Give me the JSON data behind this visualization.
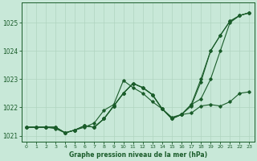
{
  "background_color": "#c8e8d8",
  "grid_color": "#b0d4c0",
  "line_color": "#1a5c2a",
  "xlabel": "Graphe pression niveau de la mer (hPa)",
  "xlim": [
    0,
    23
  ],
  "ylim": [
    1020.8,
    1025.7
  ],
  "yticks": [
    1021,
    1022,
    1023,
    1024,
    1025
  ],
  "xticks": [
    0,
    1,
    2,
    3,
    4,
    5,
    6,
    7,
    8,
    9,
    10,
    11,
    12,
    13,
    14,
    15,
    16,
    17,
    18,
    19,
    20,
    21,
    22,
    23
  ],
  "lines": [
    {
      "x": [
        0,
        1,
        2,
        3,
        4,
        5,
        6,
        7,
        8,
        9,
        10,
        11,
        12,
        13,
        14,
        15,
        16,
        17,
        18,
        19,
        20,
        21,
        22,
        23
      ],
      "y": [
        1021.3,
        1021.3,
        1021.3,
        1021.3,
        1021.1,
        1021.2,
        1021.35,
        1021.3,
        1021.6,
        1022.05,
        1022.5,
        1022.85,
        1022.7,
        1022.45,
        1021.95,
        1021.6,
        1021.75,
        1022.1,
        1023.0,
        1024.0,
        1024.55,
        1025.05,
        1025.25,
        1025.35
      ]
    },
    {
      "x": [
        0,
        1,
        2,
        3,
        4,
        5,
        6,
        7,
        8,
        9,
        10,
        11,
        12,
        13,
        14,
        15,
        16,
        17,
        18,
        19,
        20,
        21,
        22,
        23
      ],
      "y": [
        1021.3,
        1021.3,
        1021.3,
        1021.3,
        1021.1,
        1021.2,
        1021.35,
        1021.3,
        1021.6,
        1022.05,
        1022.5,
        1022.85,
        1022.7,
        1022.45,
        1021.95,
        1021.6,
        1021.75,
        1022.1,
        1022.3,
        1023.0,
        1024.0,
        1025.0,
        1025.25,
        1025.35
      ]
    },
    {
      "x": [
        0,
        1,
        2,
        3,
        4,
        5,
        6,
        7,
        8,
        9,
        10,
        11,
        12,
        13,
        14,
        15,
        16,
        17,
        18,
        19,
        20,
        21,
        22,
        23
      ],
      "y": [
        1021.3,
        1021.3,
        1021.3,
        1021.3,
        1021.1,
        1021.2,
        1021.35,
        1021.3,
        1021.6,
        1022.05,
        1022.5,
        1022.85,
        1022.7,
        1022.45,
        1021.95,
        1021.6,
        1021.75,
        1022.05,
        1022.9,
        1024.0,
        1024.55,
        1025.05,
        1025.25,
        1025.35
      ]
    },
    {
      "x": [
        0,
        1,
        2,
        3,
        4,
        5,
        6,
        7,
        8,
        9,
        10,
        11,
        12,
        13,
        14,
        15,
        16,
        17,
        18,
        19,
        20,
        21,
        22,
        23
      ],
      "y": [
        1021.3,
        1021.3,
        1021.3,
        1021.25,
        1021.1,
        1021.2,
        1021.3,
        1021.45,
        1021.9,
        1022.1,
        1022.95,
        1022.7,
        1022.5,
        1022.2,
        1021.95,
        1021.65,
        1021.75,
        1021.8,
        1022.05,
        1022.1,
        1022.05,
        1022.2,
        1022.5,
        1022.55
      ]
    }
  ]
}
